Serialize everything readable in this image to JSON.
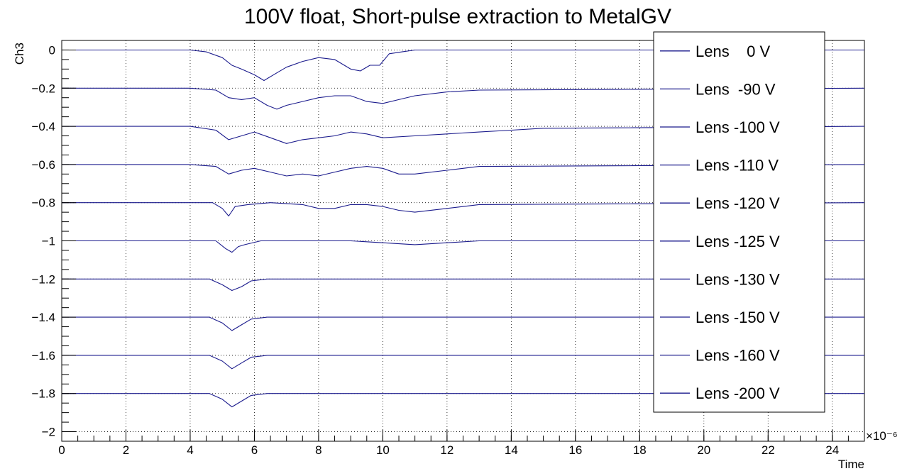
{
  "chart_data": {
    "type": "line",
    "title": "100V float, Short-pulse extraction to MetalGV",
    "xlabel": "Time",
    "ylabel": "Ch3",
    "x_exponent": "×10⁻⁶",
    "xlim": [
      0,
      25
    ],
    "ylim": [
      -2.05,
      0.05
    ],
    "x_ticks": [
      0,
      2,
      4,
      6,
      8,
      10,
      12,
      14,
      16,
      18,
      20,
      22,
      24
    ],
    "y_ticks": [
      0,
      -0.2,
      -0.4,
      -0.6,
      -0.8,
      -1,
      -1.2,
      -1.4,
      -1.6,
      -1.8,
      -2
    ],
    "x_tick_labels": [
      "0",
      "2",
      "4",
      "6",
      "8",
      "10",
      "12",
      "14",
      "16",
      "18",
      "20",
      "22",
      "24"
    ],
    "y_tick_labels": [
      "0",
      "−0.2",
      "−0.4",
      "−0.6",
      "−0.8",
      "−1",
      "−1.2",
      "−1.4",
      "−1.6",
      "−1.8",
      "−2"
    ],
    "grid": true,
    "legend_position": "top-right",
    "line_color": "#1a1a8c",
    "series": [
      {
        "name": "Lens    0 V",
        "baseline": 0,
        "x": [
          0,
          4,
          4.5,
          5,
          5.3,
          5.6,
          6,
          6.3,
          6.7,
          7,
          7.5,
          8,
          8.5,
          9,
          9.3,
          9.6,
          9.9,
          10.2,
          10.6,
          11,
          12,
          14,
          25
        ],
        "y": [
          0,
          0,
          -0.01,
          -0.04,
          -0.08,
          -0.1,
          -0.13,
          -0.16,
          -0.12,
          -0.09,
          -0.06,
          -0.04,
          -0.05,
          -0.1,
          -0.11,
          -0.08,
          -0.08,
          -0.02,
          -0.01,
          0,
          0,
          0,
          0
        ]
      },
      {
        "name": "Lens  -90 V",
        "baseline": -0.2,
        "x": [
          0,
          4,
          4.8,
          5.2,
          5.6,
          6,
          6.4,
          6.7,
          7,
          7.5,
          8,
          8.5,
          9,
          9.5,
          10,
          10.5,
          11,
          12,
          13,
          25
        ],
        "y": [
          -0.2,
          -0.2,
          -0.21,
          -0.25,
          -0.26,
          -0.25,
          -0.29,
          -0.31,
          -0.29,
          -0.27,
          -0.25,
          -0.24,
          -0.24,
          -0.27,
          -0.28,
          -0.26,
          -0.24,
          -0.22,
          -0.21,
          -0.2
        ]
      },
      {
        "name": "Lens -100 V",
        "baseline": -0.4,
        "x": [
          0,
          4,
          4.8,
          5.2,
          5.6,
          6,
          6.5,
          7,
          7.5,
          8,
          8.5,
          9,
          9.5,
          10,
          11,
          12,
          13,
          14,
          15,
          25
        ],
        "y": [
          -0.4,
          -0.4,
          -0.42,
          -0.47,
          -0.45,
          -0.43,
          -0.46,
          -0.49,
          -0.47,
          -0.46,
          -0.45,
          -0.43,
          -0.44,
          -0.46,
          -0.45,
          -0.44,
          -0.43,
          -0.42,
          -0.41,
          -0.4
        ]
      },
      {
        "name": "Lens -110 V",
        "baseline": -0.6,
        "x": [
          0,
          4,
          4.8,
          5.2,
          5.6,
          6,
          6.5,
          7,
          7.5,
          8,
          8.5,
          9,
          9.5,
          10,
          10.5,
          11,
          12,
          13,
          25
        ],
        "y": [
          -0.6,
          -0.6,
          -0.61,
          -0.65,
          -0.63,
          -0.62,
          -0.64,
          -0.66,
          -0.65,
          -0.66,
          -0.64,
          -0.62,
          -0.61,
          -0.62,
          -0.65,
          -0.65,
          -0.63,
          -0.61,
          -0.6
        ]
      },
      {
        "name": "Lens -120 V",
        "baseline": -0.8,
        "x": [
          0,
          4.7,
          5,
          5.2,
          5.4,
          5.8,
          6.5,
          7.5,
          8,
          8.5,
          9,
          9.5,
          10,
          10.5,
          11,
          12,
          13,
          25
        ],
        "y": [
          -0.8,
          -0.8,
          -0.83,
          -0.87,
          -0.82,
          -0.81,
          -0.8,
          -0.81,
          -0.83,
          -0.83,
          -0.81,
          -0.81,
          -0.82,
          -0.84,
          -0.85,
          -0.83,
          -0.81,
          -0.8
        ]
      },
      {
        "name": "Lens -125 V",
        "baseline": -1,
        "x": [
          0,
          4.8,
          5.1,
          5.3,
          5.5,
          5.7,
          6.2,
          9,
          10,
          11,
          12,
          13,
          25
        ],
        "y": [
          -1,
          -1,
          -1.04,
          -1.06,
          -1.03,
          -1.02,
          -1,
          -1,
          -1.01,
          -1.02,
          -1.01,
          -1,
          -1
        ]
      },
      {
        "name": "Lens -130 V",
        "baseline": -1.2,
        "x": [
          0,
          4.6,
          5,
          5.3,
          5.6,
          5.9,
          6.4,
          25
        ],
        "y": [
          -1.2,
          -1.2,
          -1.23,
          -1.26,
          -1.24,
          -1.21,
          -1.2,
          -1.2
        ]
      },
      {
        "name": "Lens -150 V",
        "baseline": -1.4,
        "x": [
          0,
          4.6,
          5,
          5.3,
          5.6,
          5.9,
          6.4,
          25
        ],
        "y": [
          -1.4,
          -1.4,
          -1.43,
          -1.47,
          -1.44,
          -1.41,
          -1.4,
          -1.4
        ]
      },
      {
        "name": "Lens -160 V",
        "baseline": -1.6,
        "x": [
          0,
          4.6,
          5,
          5.3,
          5.6,
          5.9,
          6.4,
          25
        ],
        "y": [
          -1.6,
          -1.6,
          -1.63,
          -1.67,
          -1.64,
          -1.61,
          -1.6,
          -1.6
        ]
      },
      {
        "name": "Lens -200 V",
        "baseline": -1.8,
        "x": [
          0,
          4.6,
          5,
          5.3,
          5.6,
          5.9,
          6.4,
          25
        ],
        "y": [
          -1.8,
          -1.8,
          -1.83,
          -1.87,
          -1.84,
          -1.81,
          -1.8,
          -1.8
        ]
      }
    ]
  }
}
